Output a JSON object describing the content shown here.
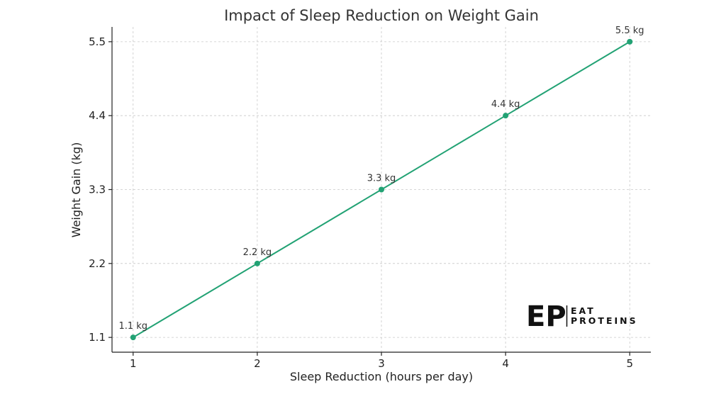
{
  "chart_data": {
    "type": "line",
    "title": "Impact of Sleep Reduction on Weight Gain",
    "xlabel": "Sleep Reduction (hours per day)",
    "ylabel": "Weight Gain (kg)",
    "x": [
      1,
      2,
      3,
      4,
      5
    ],
    "x_ticks": [
      "1",
      "2",
      "3",
      "4",
      "5"
    ],
    "y_ticks": [
      "1.1",
      "2.2",
      "3.3",
      "4.4",
      "5.5"
    ],
    "xlim": [
      0.83,
      5.17
    ],
    "ylim": [
      0.88,
      5.72
    ],
    "grid": true,
    "series": [
      {
        "values": [
          1.1,
          2.2,
          3.3,
          4.4,
          5.5
        ],
        "labels": [
          "1.1 kg",
          "2.2 kg",
          "3.3 kg",
          "4.4 kg",
          "5.5 kg"
        ],
        "color": "#22a274"
      }
    ]
  },
  "logo": {
    "mark": "EP",
    "line1": "EAT",
    "line2": "PROTEINS"
  }
}
